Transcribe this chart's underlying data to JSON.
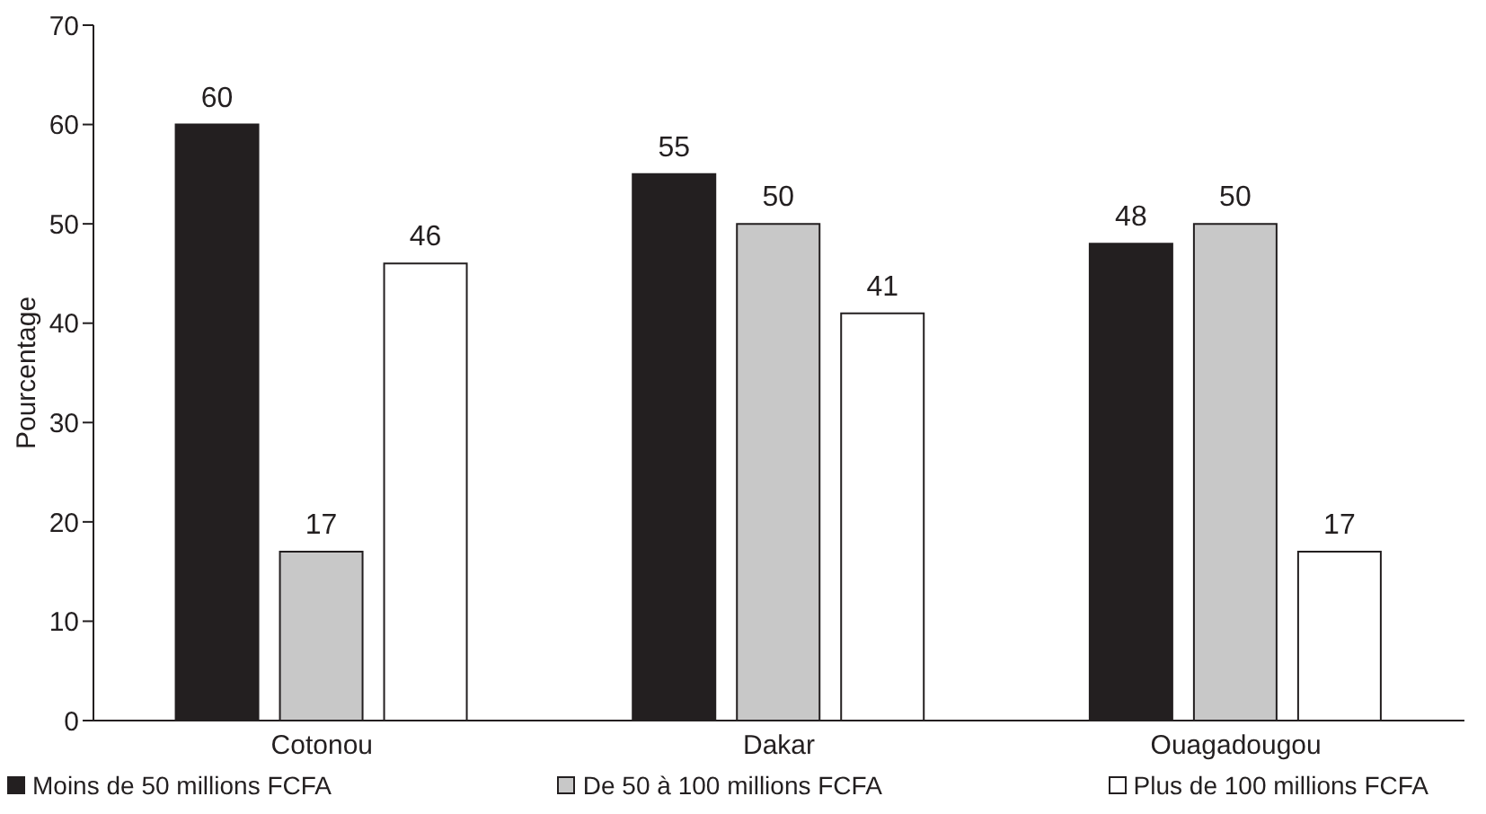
{
  "chart_data": {
    "type": "bar",
    "ylabel": "Pourcentage",
    "categories": [
      "Cotonou",
      "Dakar",
      "Ouagadougou"
    ],
    "series": [
      {
        "name": "Moins de 50 millions FCFA",
        "color": "#231f20",
        "values": [
          60,
          55,
          48
        ]
      },
      {
        "name": "De 50 à 100 millions FCFA",
        "color": "#c8c8c8",
        "values": [
          17,
          50,
          50
        ]
      },
      {
        "name": "Plus de 100 millions FCFA",
        "color": "#ffffff",
        "values": [
          46,
          41,
          17
        ]
      }
    ],
    "ylim": [
      0,
      70
    ],
    "yticks": [
      0,
      10,
      20,
      30,
      40,
      50,
      60,
      70
    ],
    "grid": false,
    "legend": "bottom",
    "data_labels": true
  }
}
